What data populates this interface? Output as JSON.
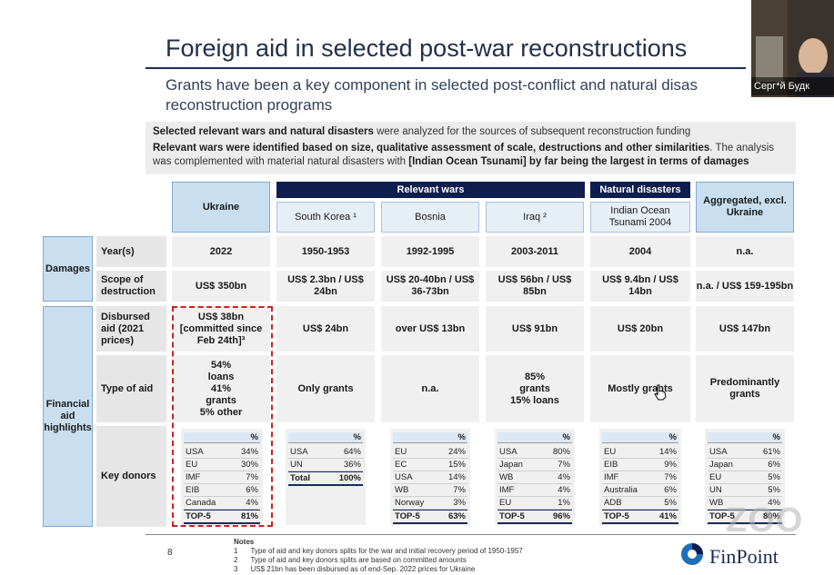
{
  "slide": {
    "title": "Foreign aid in selected post-war reconstructions",
    "subtitle": "Grants have been a key component in selected post-conflict and natural disas reconstruction programs",
    "intro_line1_bold": "Selected relevant wars and natural disasters",
    "intro_line1_rest": " were analyzed for the sources of subsequent reconstruction funding",
    "intro_line2_bold": "Relevant wars were identified based on size, qualitative assessment of scale, destructions and other similarities",
    "intro_line2_rest": ". The analysis was complemented with material natural disasters with ",
    "intro_line2_bold2": "[Indian Ocean Tsunami]  by far being the largest in terms of damages",
    "page_number": "8"
  },
  "table": {
    "group_headers": {
      "wars": "Relevant wars",
      "disasters": "Natural disasters"
    },
    "columns": [
      {
        "label": "Ukraine"
      },
      {
        "label": "South Korea ¹"
      },
      {
        "label": "Bosnia"
      },
      {
        "label": "Iraq ²"
      },
      {
        "label": "Indian Ocean Tsunami 2004"
      },
      {
        "label": "Aggregated, excl. Ukraine"
      }
    ],
    "sections": {
      "damages": "Damages",
      "financial": "Financial aid highlights"
    },
    "row_labels": {
      "years": "Year(s)",
      "scope": "Scope of destruction",
      "disbursed": "Disbursed aid (2021 prices)",
      "type": "Type of aid",
      "donors": "Key donors"
    },
    "years": [
      "2022",
      "1950-1953",
      "1992-1995",
      "2003-2011",
      "2004",
      "n.a."
    ],
    "scope": [
      "US$ 350bn",
      "US$ 2.3bn / US$ 24bn",
      "US$ 20-40bn / US$ 36-73bn",
      "US$ 56bn / US$ 85bn",
      "US$ 9.4bn / US$ 14bn",
      "n.a. / US$ 159-195bn"
    ],
    "disbursed": [
      "US$ 38bn [committed since Feb 24th]³",
      "US$ 24bn",
      "over US$ 13bn",
      "US$ 91bn",
      "US$ 20bn",
      "US$ 147bn"
    ],
    "type": [
      "54% loans 41% grants 5% other",
      "Only grants",
      "n.a.",
      "85% grants 15% loans",
      "Mostly grants",
      "Predominantly grants"
    ],
    "donors": [
      {
        "rows": [
          [
            "USA",
            "34%"
          ],
          [
            "EU",
            "30%"
          ],
          [
            "IMF",
            "7%"
          ],
          [
            "EIB",
            "6%"
          ],
          [
            "Canada",
            "4%"
          ]
        ],
        "total": [
          "TOP-5",
          "81%"
        ]
      },
      {
        "rows": [
          [
            "USA",
            "64%"
          ],
          [
            "UN",
            "36%"
          ]
        ],
        "total": [
          "Total",
          "100%"
        ]
      },
      {
        "rows": [
          [
            "EU",
            "24%"
          ],
          [
            "EC",
            "15%"
          ],
          [
            "USA",
            "14%"
          ],
          [
            "WB",
            "7%"
          ],
          [
            "Norway",
            "3%"
          ]
        ],
        "total": [
          "TOP-5",
          "63%"
        ]
      },
      {
        "rows": [
          [
            "USA",
            "80%"
          ],
          [
            "Japan",
            "7%"
          ],
          [
            "WB",
            "4%"
          ],
          [
            "IMF",
            "4%"
          ],
          [
            "EU",
            "1%"
          ]
        ],
        "total": [
          "TOP-5",
          "96%"
        ]
      },
      {
        "rows": [
          [
            "EU",
            "14%"
          ],
          [
            "EIB",
            "9%"
          ],
          [
            "IMF",
            "7%"
          ],
          [
            "Australia",
            "6%"
          ],
          [
            "ADB",
            "5%"
          ]
        ],
        "total": [
          "TOP-5",
          "41%"
        ]
      },
      {
        "rows": [
          [
            "USA",
            "61%"
          ],
          [
            "Japan",
            "6%"
          ],
          [
            "EU",
            "5%"
          ],
          [
            "UN",
            "5%"
          ],
          [
            "WB",
            "4%"
          ]
        ],
        "total": [
          "TOP-5",
          "80%"
        ]
      }
    ],
    "pct_header": "%"
  },
  "notes": {
    "heading": "Notes",
    "items": [
      [
        "1",
        "Type of aid and key donors splits for the war and initial recovery period of 1950-1957"
      ],
      [
        "2",
        "Type of aid and key donors splits are based on committed amounts"
      ],
      [
        "3",
        "US$ 21bn has been disbursed as of end-Sep. 2022 prices for Ukraine"
      ]
    ]
  },
  "brand": {
    "logo_text": "FinPoint"
  },
  "meeting": {
    "participant_name": "Серг*й Будк",
    "watermark": "ZOO"
  },
  "colors": {
    "navy": "#0e1e4e",
    "header_blue": "#c9dff0",
    "highlight_red": "#d12020"
  }
}
